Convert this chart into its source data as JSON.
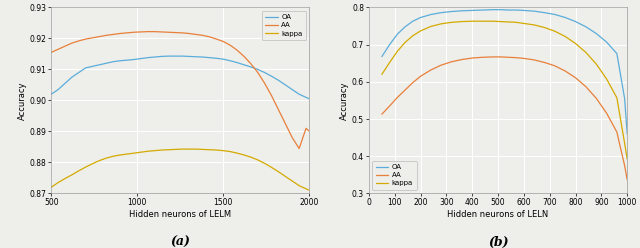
{
  "subplot_a": {
    "xlabel": "Hidden neurons of LELM",
    "ylabel": "Accuracy",
    "xlim": [
      500,
      2000
    ],
    "ylim": [
      0.87,
      0.93
    ],
    "yticks": [
      0.87,
      0.88,
      0.89,
      0.9,
      0.91,
      0.92,
      0.93
    ],
    "xticks": [
      500,
      1000,
      1500,
      2000
    ],
    "legend_labels": [
      "OA",
      "AA",
      "kappa"
    ],
    "line_colors": [
      "#5aaddb",
      "#e8803a",
      "#d4aa00"
    ],
    "legend_loc": "upper right",
    "OA_x": [
      500,
      540,
      580,
      620,
      660,
      700,
      740,
      780,
      820,
      860,
      900,
      940,
      980,
      1020,
      1060,
      1100,
      1140,
      1180,
      1220,
      1260,
      1300,
      1340,
      1380,
      1420,
      1460,
      1500,
      1540,
      1580,
      1620,
      1660,
      1700,
      1740,
      1780,
      1820,
      1860,
      1900,
      1940,
      1980,
      2000
    ],
    "OA_y": [
      0.902,
      0.9035,
      0.9055,
      0.9075,
      0.909,
      0.9105,
      0.911,
      0.9115,
      0.912,
      0.9125,
      0.9128,
      0.913,
      0.9132,
      0.9135,
      0.9138,
      0.914,
      0.9142,
      0.9143,
      0.9143,
      0.9143,
      0.9142,
      0.9141,
      0.914,
      0.9138,
      0.9136,
      0.9133,
      0.9128,
      0.9122,
      0.9115,
      0.9108,
      0.91,
      0.909,
      0.9078,
      0.9065,
      0.905,
      0.9035,
      0.902,
      0.901,
      0.9005
    ],
    "AA_x": [
      500,
      540,
      580,
      620,
      660,
      700,
      740,
      780,
      820,
      860,
      900,
      940,
      980,
      1020,
      1060,
      1100,
      1140,
      1180,
      1220,
      1260,
      1300,
      1340,
      1380,
      1420,
      1460,
      1500,
      1540,
      1580,
      1620,
      1660,
      1700,
      1740,
      1780,
      1820,
      1860,
      1900,
      1940,
      1980,
      2000
    ],
    "AA_y": [
      0.9155,
      0.9165,
      0.9175,
      0.9185,
      0.9192,
      0.9198,
      0.9202,
      0.9206,
      0.921,
      0.9213,
      0.9216,
      0.9218,
      0.922,
      0.9221,
      0.9222,
      0.9222,
      0.9221,
      0.922,
      0.9219,
      0.9218,
      0.9216,
      0.9213,
      0.921,
      0.9205,
      0.9198,
      0.919,
      0.9178,
      0.9162,
      0.9142,
      0.9118,
      0.909,
      0.9055,
      0.9015,
      0.897,
      0.8925,
      0.888,
      0.8845,
      0.891,
      0.89
    ],
    "kappa_x": [
      500,
      540,
      580,
      620,
      660,
      700,
      740,
      780,
      820,
      860,
      900,
      940,
      980,
      1020,
      1060,
      1100,
      1140,
      1180,
      1220,
      1260,
      1300,
      1340,
      1380,
      1420,
      1460,
      1500,
      1540,
      1580,
      1620,
      1660,
      1700,
      1740,
      1780,
      1820,
      1860,
      1900,
      1940,
      1980,
      2000
    ],
    "kappa_y": [
      0.872,
      0.8735,
      0.8748,
      0.876,
      0.8773,
      0.8785,
      0.8796,
      0.8806,
      0.8814,
      0.882,
      0.8824,
      0.8827,
      0.883,
      0.8833,
      0.8836,
      0.8838,
      0.884,
      0.8841,
      0.8842,
      0.8843,
      0.8843,
      0.8843,
      0.8842,
      0.8841,
      0.884,
      0.8838,
      0.8835,
      0.883,
      0.8824,
      0.8817,
      0.8808,
      0.8797,
      0.8784,
      0.877,
      0.8755,
      0.874,
      0.8725,
      0.8715,
      0.871
    ]
  },
  "subplot_b": {
    "xlabel": "Hidden neurons of LELN",
    "ylabel": "Accuracy",
    "xlim": [
      0,
      1000
    ],
    "ylim": [
      0.3,
      0.8
    ],
    "yticks": [
      0.3,
      0.4,
      0.5,
      0.6,
      0.7,
      0.8
    ],
    "xticks": [
      0,
      100,
      200,
      300,
      400,
      500,
      600,
      700,
      800,
      900,
      1000
    ],
    "legend_labels": [
      "OA",
      "AA",
      "kappa"
    ],
    "line_colors": [
      "#5aaddb",
      "#e8803a",
      "#d4aa00"
    ],
    "legend_loc": "lower left",
    "OA_x": [
      50,
      80,
      110,
      140,
      170,
      200,
      240,
      280,
      320,
      360,
      400,
      440,
      480,
      510,
      540,
      570,
      600,
      640,
      680,
      720,
      760,
      800,
      840,
      880,
      920,
      960,
      990,
      1000
    ],
    "OA_y": [
      0.668,
      0.7,
      0.728,
      0.748,
      0.763,
      0.773,
      0.781,
      0.786,
      0.789,
      0.791,
      0.792,
      0.793,
      0.794,
      0.794,
      0.793,
      0.793,
      0.792,
      0.79,
      0.786,
      0.781,
      0.773,
      0.762,
      0.748,
      0.73,
      0.707,
      0.676,
      0.555,
      0.46
    ],
    "AA_x": [
      50,
      80,
      110,
      140,
      170,
      200,
      240,
      280,
      320,
      360,
      400,
      440,
      480,
      510,
      540,
      570,
      600,
      640,
      680,
      720,
      760,
      800,
      840,
      880,
      920,
      960,
      990,
      1000
    ],
    "AA_y": [
      0.513,
      0.535,
      0.558,
      0.578,
      0.598,
      0.615,
      0.632,
      0.645,
      0.654,
      0.66,
      0.664,
      0.666,
      0.667,
      0.667,
      0.666,
      0.665,
      0.663,
      0.659,
      0.652,
      0.643,
      0.629,
      0.611,
      0.587,
      0.556,
      0.516,
      0.465,
      0.375,
      0.337
    ],
    "kappa_x": [
      50,
      80,
      110,
      140,
      170,
      200,
      240,
      280,
      320,
      360,
      400,
      440,
      480,
      510,
      540,
      570,
      600,
      640,
      680,
      720,
      760,
      800,
      840,
      880,
      920,
      960,
      990,
      1000
    ],
    "kappa_y": [
      0.62,
      0.652,
      0.682,
      0.706,
      0.724,
      0.737,
      0.749,
      0.756,
      0.76,
      0.762,
      0.763,
      0.763,
      0.763,
      0.762,
      0.761,
      0.76,
      0.757,
      0.753,
      0.746,
      0.736,
      0.722,
      0.703,
      0.679,
      0.648,
      0.608,
      0.557,
      0.435,
      0.392
    ]
  },
  "bg_color": "#eeeeea",
  "grid_color": "#ffffff",
  "figure_label_a": "(a)",
  "figure_label_b": "(b)"
}
